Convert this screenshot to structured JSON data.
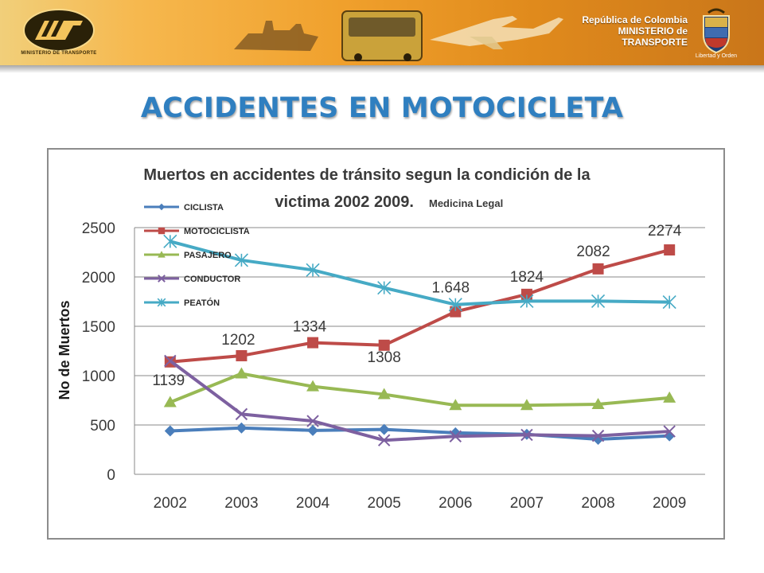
{
  "header": {
    "logo_caption": "MINISTERIO DE TRANSPORTE",
    "republic": "República de Colombia",
    "ministry": "MINISTERIO de TRANSPORTE",
    "motto": "Libertad y Orden"
  },
  "slide": {
    "title": "ACCIDENTES EN MOTOCICLETA"
  },
  "chart_data": {
    "type": "line",
    "title_line1": "Muertos en accidentes de tránsito segun la condición de la",
    "title_line2": "victima 2002 2009.",
    "subtitle": "Medicina Legal",
    "xlabel": "",
    "ylabel": "No de Muertos",
    "categories": [
      "2002",
      "2003",
      "2004",
      "2005",
      "2006",
      "2007",
      "2008",
      "2009"
    ],
    "ylim": [
      0,
      2500
    ],
    "yticks": [
      "0",
      "500",
      "1000",
      "1500",
      "2000",
      "2500"
    ],
    "grid": true,
    "legend_position": "top-left",
    "series": [
      {
        "name": "CICLISTA",
        "color": "#4a7ebb",
        "marker": "diamond",
        "values": [
          440,
          470,
          445,
          455,
          420,
          405,
          355,
          390
        ]
      },
      {
        "name": "MOTOCICLISTA",
        "color": "#be4b48",
        "marker": "square",
        "values": [
          1139,
          1202,
          1334,
          1308,
          1648,
          1824,
          2082,
          2274
        ]
      },
      {
        "name": "PASAJERO",
        "color": "#98b954",
        "marker": "triangle",
        "values": [
          730,
          1020,
          890,
          810,
          700,
          700,
          710,
          775
        ]
      },
      {
        "name": "CONDUCTOR",
        "color": "#7d60a0",
        "marker": "x",
        "values": [
          1150,
          610,
          540,
          345,
          385,
          400,
          390,
          435
        ]
      },
      {
        "name": "PEATÓN",
        "color": "#46aac5",
        "marker": "star",
        "values": [
          2360,
          2170,
          2070,
          1890,
          1720,
          1755,
          1755,
          1745
        ]
      }
    ],
    "data_labels": [
      "1139",
      "1202",
      "1334",
      "1308",
      "1.648",
      "1824",
      "2082",
      "2274"
    ]
  }
}
